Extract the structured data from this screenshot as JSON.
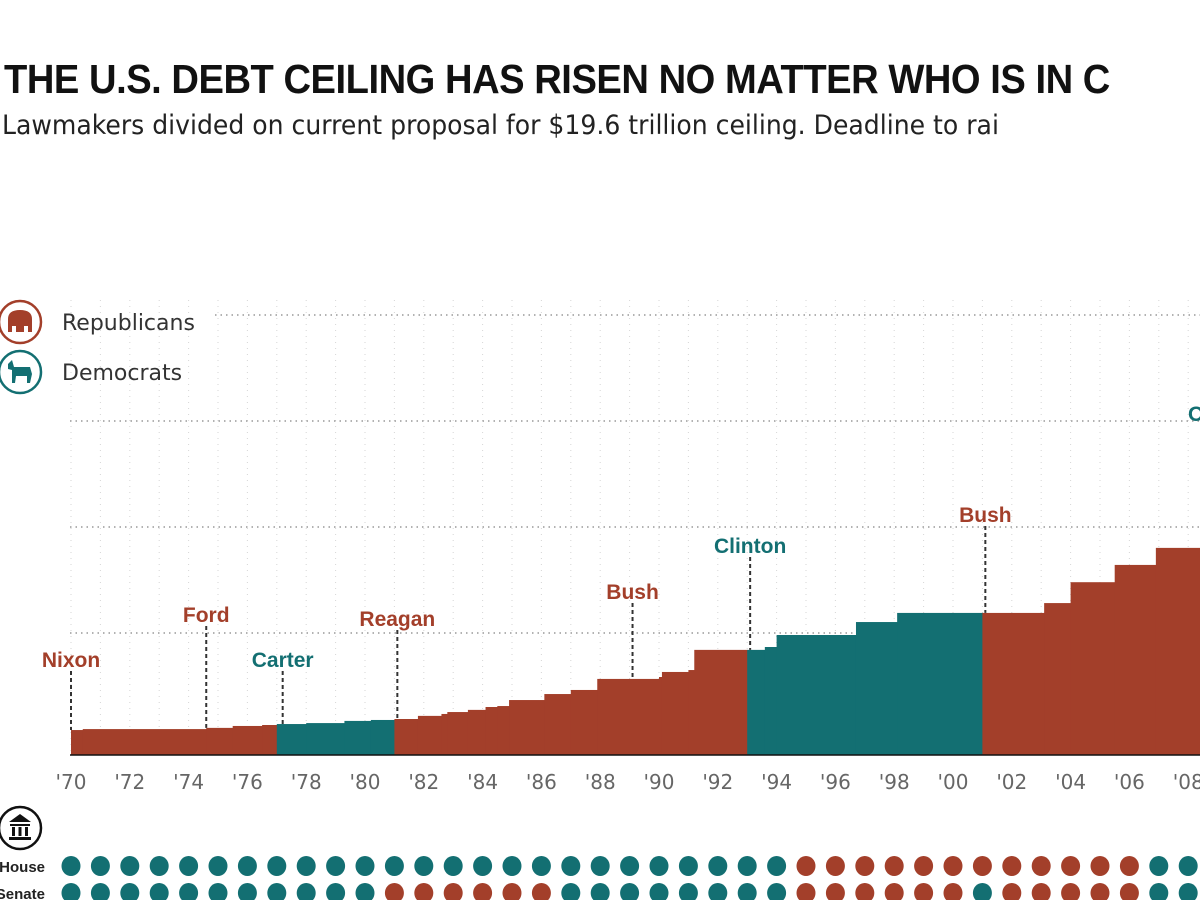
{
  "title": "THE U.S. DEBT CEILING HAS RISEN NO MATTER WHO IS IN C",
  "subtitle": "Lawmakers divided on current proposal for $19.6 trillion ceiling. Deadline to rai",
  "colors": {
    "republican": "#a33f2a",
    "democrat": "#136f72",
    "axis": "#111111",
    "tick": "#666666",
    "grid": "#bbbbbb"
  },
  "legend": [
    {
      "label": "Republicans",
      "icon": "elephant-icon",
      "party": "R"
    },
    {
      "label": "Democrats",
      "icon": "donkey-icon",
      "party": "D"
    }
  ],
  "congress": {
    "icon": "capitol-building-icon",
    "rows": [
      {
        "label": "House",
        "years": [
          1970,
          2008
        ],
        "control": [
          [
            "D",
            1970,
            1994
          ],
          [
            "R",
            1995,
            2006
          ],
          [
            "D",
            2007,
            2008
          ]
        ]
      },
      {
        "label": "Senate",
        "years": [
          1970,
          2008
        ],
        "control": [
          [
            "D",
            1970,
            1980
          ],
          [
            "R",
            1981,
            1986
          ],
          [
            "D",
            1987,
            1994
          ],
          [
            "R",
            1995,
            2000
          ],
          [
            "D",
            2001,
            2001
          ],
          [
            "R",
            2002,
            2006
          ],
          [
            "D",
            2007,
            2008
          ]
        ]
      }
    ]
  },
  "chart_data": {
    "type": "area",
    "title": "",
    "xlabel": "",
    "ylabel": "",
    "xlim": [
      1970,
      2008.4
    ],
    "grid": true,
    "legend_placement": "top-left",
    "x_tick_labels": [
      "'70",
      "'72",
      "'74",
      "'76",
      "'78",
      "'80",
      "'82",
      "'84",
      "'86",
      "'88",
      "'90",
      "'92",
      "'94",
      "'96",
      "'98",
      "'00",
      "'02",
      "'04",
      "'06",
      "'08"
    ],
    "steps": [
      [
        1970.0,
        1.04,
        "R"
      ],
      [
        1970.4,
        1.08,
        "R"
      ],
      [
        1974.6,
        1.13,
        "R"
      ],
      [
        1975.5,
        1.21,
        "R"
      ],
      [
        1976.5,
        1.25,
        "R"
      ],
      [
        1977.0,
        1.29,
        "D"
      ],
      [
        1978.0,
        1.33,
        "D"
      ],
      [
        1979.3,
        1.42,
        "D"
      ],
      [
        1980.2,
        1.46,
        "D"
      ],
      [
        1981.0,
        1.5,
        "R"
      ],
      [
        1981.8,
        1.63,
        "R"
      ],
      [
        1982.6,
        1.71,
        "R"
      ],
      [
        1982.8,
        1.79,
        "R"
      ],
      [
        1983.5,
        1.88,
        "R"
      ],
      [
        1984.1,
        2.0,
        "R"
      ],
      [
        1984.5,
        2.04,
        "R"
      ],
      [
        1984.9,
        2.29,
        "R"
      ],
      [
        1986.1,
        2.54,
        "R"
      ],
      [
        1987.0,
        2.71,
        "R"
      ],
      [
        1987.9,
        3.17,
        "R"
      ],
      [
        1990.0,
        3.25,
        "R"
      ],
      [
        1990.1,
        3.46,
        "R"
      ],
      [
        1991.0,
        3.54,
        "R"
      ],
      [
        1991.2,
        4.38,
        "R"
      ],
      [
        1993.0,
        4.38,
        "D"
      ],
      [
        1993.6,
        4.5,
        "D"
      ],
      [
        1994.0,
        5.0,
        "D"
      ],
      [
        1996.7,
        5.54,
        "D"
      ],
      [
        1998.1,
        5.92,
        "D"
      ],
      [
        2001.0,
        5.92,
        "R"
      ],
      [
        2003.1,
        6.33,
        "R"
      ],
      [
        2004.0,
        7.2,
        "R"
      ],
      [
        2005.5,
        7.92,
        "R"
      ],
      [
        2006.9,
        8.63,
        "R"
      ]
    ],
    "annotations": [
      {
        "label": "Nixon",
        "year": 1970.0,
        "party": "R"
      },
      {
        "label": "Ford",
        "year": 1974.6,
        "party": "R"
      },
      {
        "label": "Carter",
        "year": 1977.2,
        "party": "D"
      },
      {
        "label": "Reagan",
        "year": 1981.1,
        "party": "R"
      },
      {
        "label": "Bush",
        "year": 1989.1,
        "party": "R"
      },
      {
        "label": "Clinton",
        "year": 1993.1,
        "party": "D"
      },
      {
        "label": "Bush",
        "year": 2001.1,
        "party": "R"
      },
      {
        "label": "O",
        "year": 2009.0,
        "party": "D"
      }
    ]
  }
}
